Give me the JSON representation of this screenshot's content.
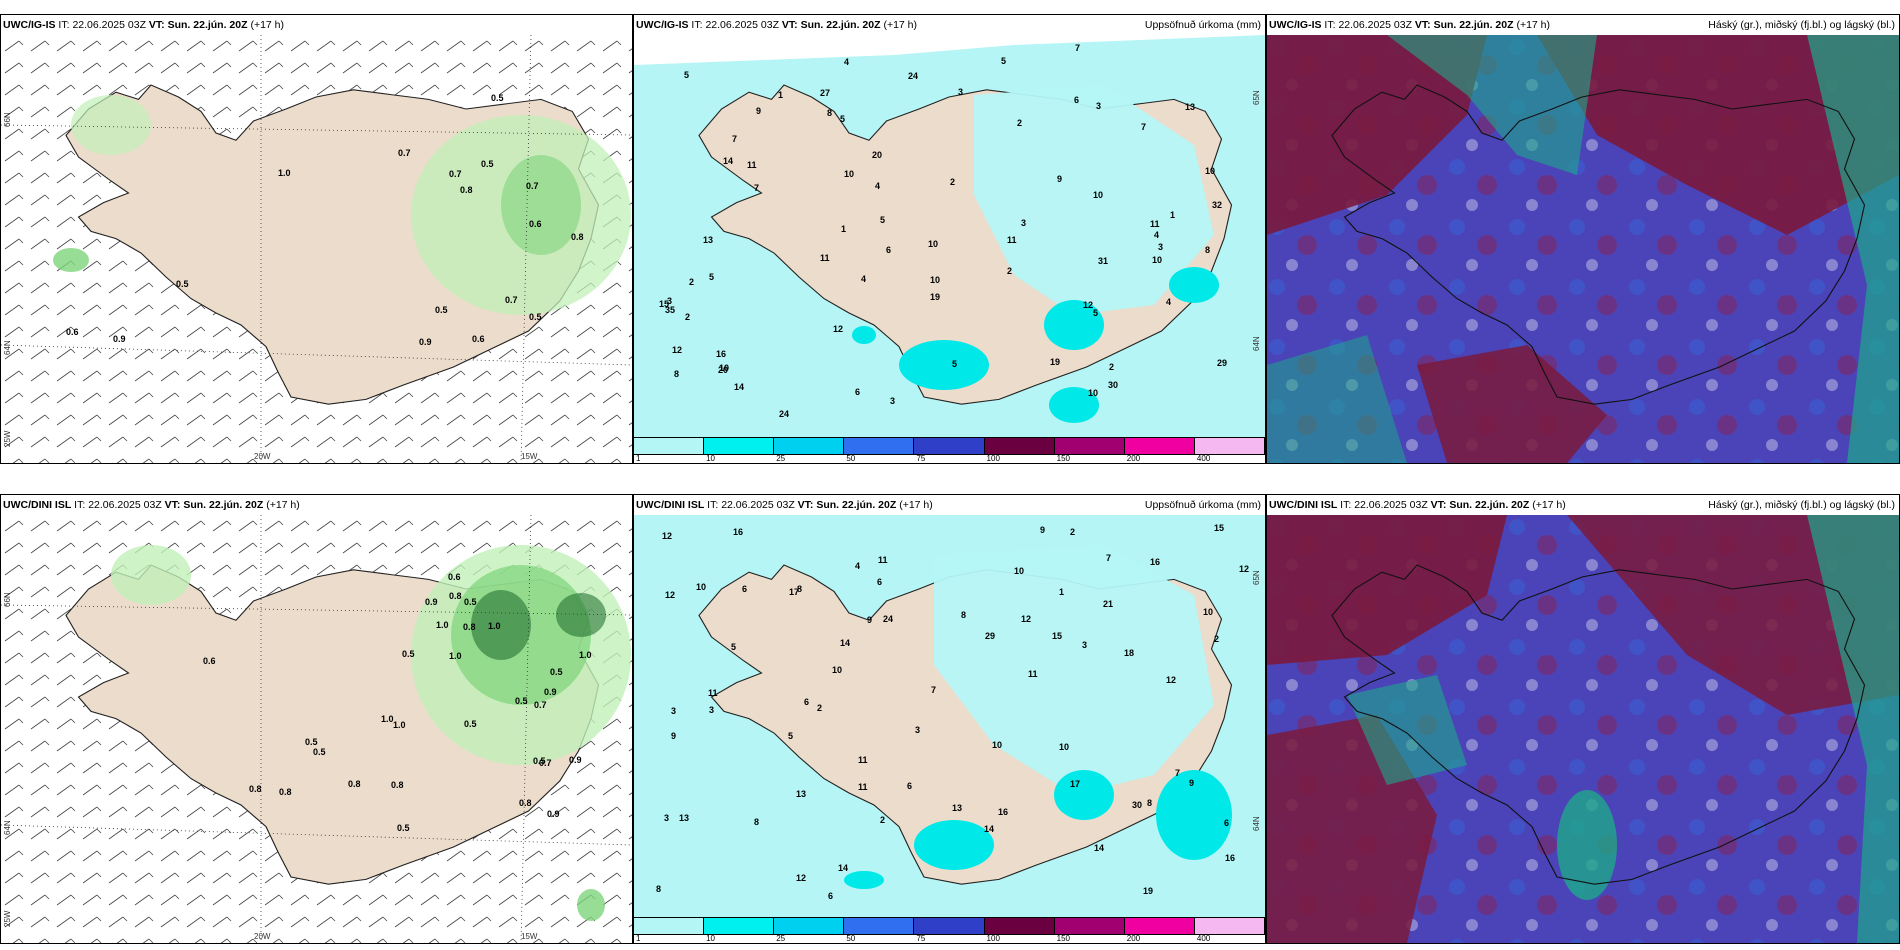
{
  "colors": {
    "land": "#ecdccb",
    "precip_light": "#b5f5f5",
    "precip_mid": "#00e8e8",
    "precip_strong": "#00c4f0",
    "precip_heavy": "#3050e0",
    "cloud_high": "#7a1a3c",
    "cloud_mid": "#4a44b8",
    "cloud_low": "#1ea88a",
    "green_light": "#c2f0b8",
    "green_mid": "#7ed47a",
    "green_dark": "#1a6a2a"
  },
  "legend": {
    "ticks": [
      "1",
      "10",
      "25",
      "50",
      "75",
      "100",
      "150",
      "200",
      "400"
    ],
    "colors": [
      "#b4f5f5",
      "#00f0f0",
      "#00d0f0",
      "#3070f0",
      "#2f3fc8",
      "#6a0040",
      "#a00070",
      "#f000a0",
      "#f5b8f0"
    ]
  },
  "rows": [
    {
      "panels": [
        {
          "model": "UWC/IG-IS",
          "it_label": "IT:",
          "it_value": "22.06.2025 03Z",
          "vt_label": "VT:",
          "vt_value": "Sun. 22.jún. 20Z",
          "lead": "(+17 h)",
          "right_title": "",
          "axis": {
            "x1": "20W",
            "x2": "15W",
            "y1": "66N",
            "y2": "64N",
            "y3": "25W"
          },
          "labels": [
            "0.5",
            "0.9",
            "0.8",
            "0.6",
            "0.7",
            "0.6",
            "0.5",
            "0.7",
            "0.5",
            "0.7",
            "1.0",
            "0.6",
            "0.5",
            "0.5",
            "0.7",
            "0.9",
            "0.8"
          ]
        },
        {
          "model": "UWC/IG-IS",
          "it_label": "IT:",
          "it_value": "22.06.2025 03Z",
          "vt_label": "VT:",
          "vt_value": "Sun. 22.jún. 20Z",
          "lead": "(+17 h)",
          "right_title": "Uppsöfnuð úrkoma (mm)",
          "axis": {
            "y1": "65N",
            "y2": "64N"
          },
          "labels": [
            "2",
            "2",
            "1",
            "8",
            "10",
            "10",
            "10",
            "10",
            "5",
            "5",
            "2",
            "1",
            "3",
            "6",
            "8",
            "7",
            "7",
            "5",
            "4",
            "4",
            "3",
            "4",
            "7",
            "5",
            "11",
            "10",
            "3",
            "1",
            "2",
            "3",
            "12",
            "11",
            "13",
            "3",
            "2",
            "3",
            "5",
            "6",
            "6",
            "10",
            "10",
            "8",
            "14",
            "24",
            "20",
            "19",
            "11",
            "29",
            "16",
            "15",
            "13",
            "31",
            "12",
            "27",
            "32",
            "30",
            "24",
            "35",
            "19",
            "9",
            "12",
            "11",
            "20",
            "14",
            "9",
            "7",
            "4",
            "10",
            "5",
            "2",
            "5",
            "4"
          ]
        },
        {
          "model": "UWC/IG-IS",
          "it_label": "IT:",
          "it_value": "22.06.2025 03Z",
          "vt_label": "VT:",
          "vt_value": "Sun. 22.jún. 20Z",
          "lead": "(+17 h)",
          "right_title": "Háský (gr.), miðský (fj.bl.) og lágský (bl.)"
        }
      ]
    },
    {
      "panels": [
        {
          "model": "UWC/DINI ISL",
          "it_label": "IT:",
          "it_value": "22.06.2025 03Z",
          "vt_label": "VT:",
          "vt_value": "Sun. 22.jún. 20Z",
          "lead": "(+17 h)",
          "right_title": "",
          "axis": {
            "x1": "20W",
            "x2": "15W",
            "y1": "66N",
            "y2": "64N",
            "y3": "25W"
          },
          "labels": [
            "0.5",
            "0.6",
            "0.5",
            "0.5",
            "0.7",
            "0.8",
            "0.8",
            "1.0",
            "0.8",
            "0.9",
            "0.8",
            "1.0",
            "0.9",
            "0.7",
            "0.9",
            "0.6",
            "0.8",
            "1.0",
            "1.0",
            "0.5",
            "0.5",
            "1.0",
            "1.0",
            "0.5",
            "0.8",
            "0.8",
            "0.5",
            "0.5",
            "0.5",
            "0.9"
          ]
        },
        {
          "model": "UWC/DINI ISL",
          "it_label": "IT:",
          "it_value": "22.06.2025 03Z",
          "vt_label": "VT:",
          "vt_value": "Sun. 22.jún. 20Z",
          "lead": "(+17 h)",
          "right_title": "Uppsöfnuð úrkoma (mm)",
          "axis": {
            "y1": "65N",
            "y2": "64N"
          },
          "labels": [
            "3",
            "3",
            "3",
            "3",
            "6",
            "7",
            "6",
            "10",
            "10",
            "9",
            "12",
            "2",
            "8",
            "10",
            "11",
            "11",
            "11",
            "8",
            "8",
            "12",
            "12",
            "13",
            "11",
            "16",
            "16",
            "14",
            "9",
            "12",
            "6",
            "12",
            "5",
            "10",
            "6",
            "3",
            "9",
            "17",
            "2",
            "7",
            "2",
            "5",
            "13",
            "16",
            "16",
            "17",
            "15",
            "18",
            "24",
            "14",
            "15",
            "14",
            "19",
            "21",
            "11",
            "14",
            "29",
            "30",
            "8",
            "10",
            "13",
            "12",
            "7",
            "6",
            "9",
            "8",
            "6",
            "2",
            "4",
            "1",
            "10"
          ]
        },
        {
          "model": "UWC/DINI ISL",
          "it_label": "IT:",
          "it_value": "22.06.2025 03Z",
          "vt_label": "VT:",
          "vt_value": "Sun. 22.jún. 20Z",
          "lead": "(+17 h)",
          "right_title": "Háský (gr.), miðský (fj.bl.) og lágský (bl.)"
        }
      ]
    }
  ]
}
